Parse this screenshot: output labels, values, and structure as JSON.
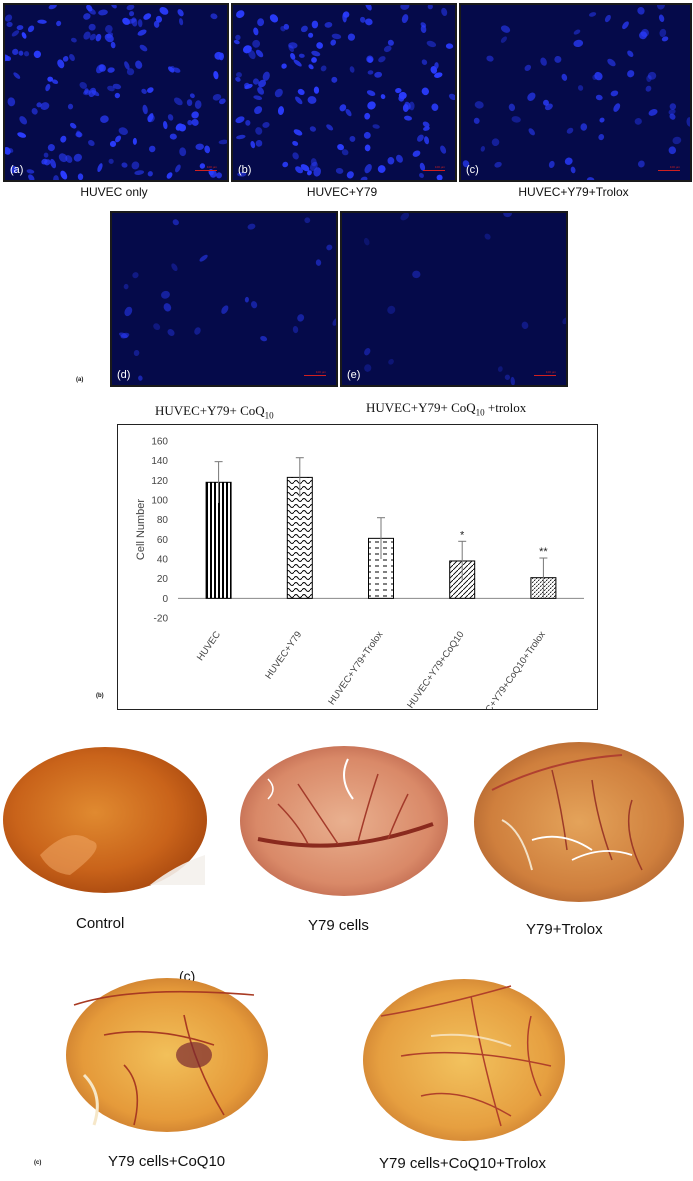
{
  "fluorescence_panels": [
    {
      "letter": "(a)",
      "caption": "HUVEC only",
      "density": 140,
      "brightness": 1.0
    },
    {
      "letter": "(b)",
      "caption": "HUVEC+Y79",
      "density": 130,
      "brightness": 1.0
    },
    {
      "letter": "(c)",
      "caption": "HUVEC+Y79+Trolox",
      "density": 60,
      "brightness": 0.85
    },
    {
      "letter": "(d)",
      "caption_prefix": "HUVEC+Y79+ CoQ",
      "caption_sub": "10",
      "caption_suffix": "",
      "density": 26,
      "brightness": 0.6
    },
    {
      "letter": "(e)",
      "caption_prefix": "HUVEC+Y79+ CoQ",
      "caption_sub": "10",
      "caption_suffix": " +trolox",
      "density": 14,
      "brightness": 0.45
    }
  ],
  "scale_text": "100 µm",
  "section_labels": {
    "a": "(a)",
    "b": "(b)",
    "c": "(c)"
  },
  "chart_data": {
    "type": "bar",
    "categories": [
      "HUVEC",
      "HUVEC+Y79",
      "HUVEC+Y79+Trolox",
      "HUVEC+Y79+CoQ10",
      "HUVEC+Y79+CoQ10+Trolox"
    ],
    "values": [
      118,
      123,
      61,
      38,
      21
    ],
    "errors": [
      21,
      20,
      21,
      20,
      20
    ],
    "significance": [
      "",
      "",
      "",
      "*",
      "**"
    ],
    "ylabel": "Cell Number",
    "ylim": [
      -20,
      160
    ],
    "yticks": [
      -20,
      0,
      20,
      40,
      60,
      80,
      100,
      120,
      140,
      160
    ],
    "patterns": [
      "vertical-lines",
      "waves",
      "dashes",
      "diagonal",
      "diagonal-dense"
    ],
    "bar_color": "#000000"
  },
  "cam_images": [
    {
      "caption": "Control",
      "palette": "control"
    },
    {
      "caption": "Y79 cells",
      "palette": "vessels"
    },
    {
      "caption": "Y79+Trolox",
      "palette": "trolox"
    },
    {
      "caption": "Y79 cells+CoQ10",
      "palette": "coq"
    },
    {
      "caption": "Y79 cells+CoQ10+Trolox",
      "palette": "coqtrolox"
    }
  ],
  "colors": {
    "nuclei": "#2a3cff",
    "panel_bg": "#050a4a",
    "scale_bar": "#d02020"
  }
}
